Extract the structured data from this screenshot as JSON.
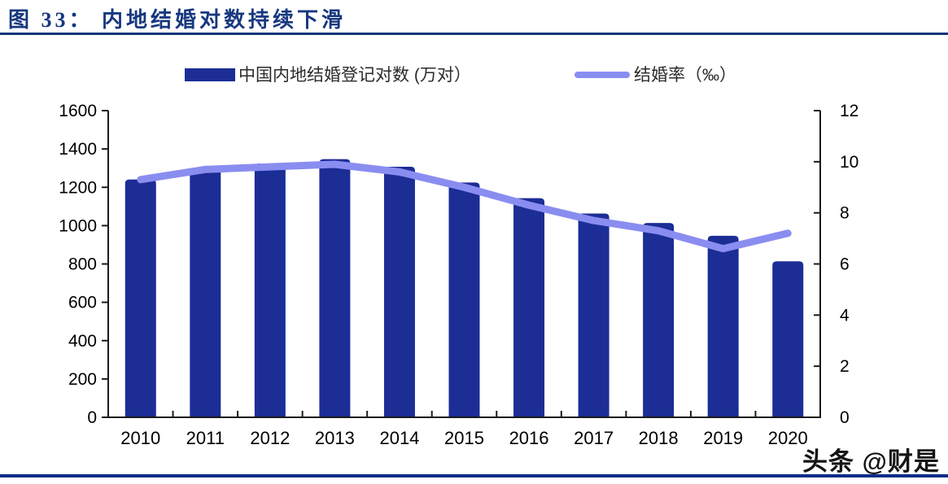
{
  "figure": {
    "title": "图 33： 内地结婚对数持续下滑",
    "watermark": "头条 @财是"
  },
  "legend": {
    "bars_label": "中国内地结婚登记对数 (万对）",
    "line_label": "结婚率（‰）"
  },
  "colors": {
    "bar": "#1C2D96",
    "line": "#8A8DF0",
    "title_accent": "#17387F",
    "rule": "#15337C",
    "bottom_rule": "#0B2D88",
    "axis": "#1a1a1a",
    "tick_label": "#000000"
  },
  "chart_data": {
    "type": "bar",
    "title": "图 33： 内地结婚对数持续下滑",
    "categories": [
      "2010",
      "2011",
      "2012",
      "2013",
      "2014",
      "2015",
      "2016",
      "2017",
      "2018",
      "2019",
      "2020"
    ],
    "series": [
      {
        "name": "中国内地结婚登记对数 (万对）",
        "type": "bar",
        "yaxis": "left",
        "values": [
          1241,
          1302,
          1324,
          1347,
          1307,
          1225,
          1143,
          1063,
          1014,
          947,
          814
        ]
      },
      {
        "name": "结婚率（‰）",
        "type": "line",
        "yaxis": "right",
        "values": [
          9.3,
          9.7,
          9.8,
          9.9,
          9.6,
          9.0,
          8.3,
          7.7,
          7.3,
          6.6,
          7.2
        ]
      }
    ],
    "left_axis": {
      "min": 0,
      "max": 1600,
      "step": 200
    },
    "right_axis": {
      "min": 0,
      "max": 12,
      "step": 2
    },
    "grid": false,
    "legend_position": "top"
  }
}
